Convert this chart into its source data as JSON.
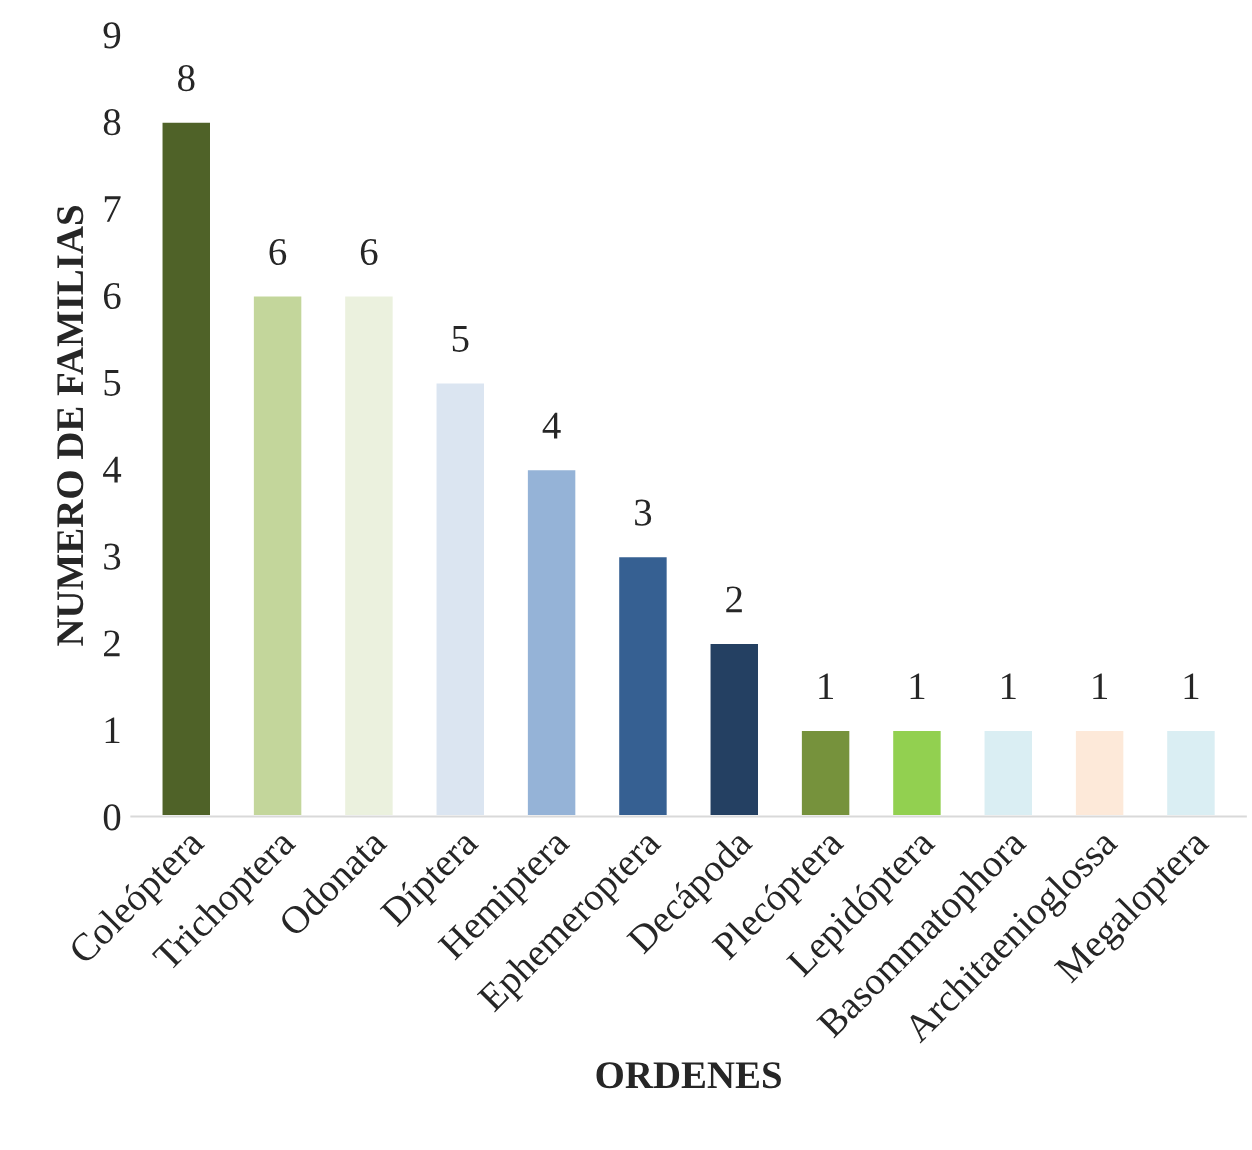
{
  "chart_data": {
    "type": "bar",
    "xlabel": "ORDENES",
    "ylabel": "NUMERO DE FAMILIAS",
    "categories": [
      "Coleóptera",
      "Trichoptera",
      "Odonata",
      "Díptera",
      "Hemiptera",
      "Ephemeroptera",
      "Decápoda",
      "Plecóptera",
      "Lepidóptera",
      "Basommatophora",
      "Architaenioglossa",
      "Megaloptera"
    ],
    "values": [
      8,
      6,
      6,
      5,
      4,
      3,
      2,
      1,
      1,
      1,
      1,
      1
    ],
    "colors": [
      "#4f6228",
      "#c3d69b",
      "#ebf1de",
      "#dbe5f1",
      "#95b3d7",
      "#366092",
      "#244062",
      "#76923c",
      "#92d050",
      "#daeef3",
      "#fde9d9",
      "#daeef3"
    ],
    "ylim": [
      0,
      9
    ],
    "yticks": [
      0,
      1,
      2,
      3,
      4,
      5,
      6,
      7,
      8,
      9
    ],
    "grid": false,
    "data_labels": true
  }
}
